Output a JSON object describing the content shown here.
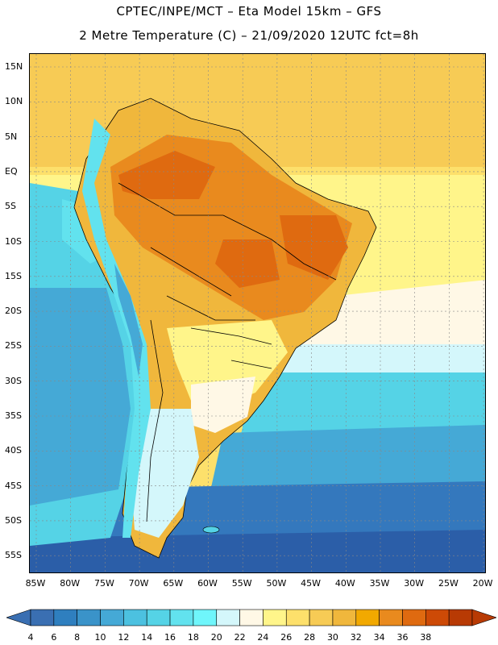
{
  "header": {
    "title_line1": "CPTEC/INPE/MCT –  Eta Model 15km – GFS",
    "title_line2": "2 Metre Temperature (C) – 21/09/2020 12UTC fct=8h"
  },
  "axes": {
    "lat_labels": [
      "15N",
      "10N",
      "5N",
      "EQ",
      "5S",
      "10S",
      "15S",
      "20S",
      "25S",
      "30S",
      "35S",
      "40S",
      "45S",
      "50S",
      "55S"
    ],
    "lon_labels": [
      "85W",
      "80W",
      "75W",
      "70W",
      "65W",
      "60W",
      "55W",
      "50W",
      "45W",
      "40W",
      "35W",
      "30W",
      "25W",
      "20W"
    ]
  },
  "colorbar": {
    "ticks": [
      "4",
      "6",
      "8",
      "10",
      "12",
      "14",
      "16",
      "18",
      "20",
      "22",
      "24",
      "26",
      "28",
      "30",
      "32",
      "34",
      "36",
      "38"
    ],
    "colors": [
      "#3a6fb2",
      "#2f7fbf",
      "#3a93c9",
      "#45a9d6",
      "#4cc1e0",
      "#55d3e6",
      "#62e2ee",
      "#6ff6fb",
      "#d4f7fb",
      "#fff8e6",
      "#fff58a",
      "#fde06b",
      "#f7cb55",
      "#f0b73c",
      "#f2a900",
      "#e98a1e",
      "#df6a10",
      "#cd4a06",
      "#b83a04"
    ],
    "low_arrow_color": "#3a6fb2",
    "high_arrow_color": "#b83a04"
  },
  "map_colors": {
    "ocean_far_south": "#2b5ea8",
    "ocean_south": "#3478bd",
    "ocean_mid": "#45a9d6",
    "ocean_cool": "#55d3e6",
    "ocean_subtrop": "#d4f7fb",
    "ocean_warm": "#fff58a",
    "ocean_trop": "#fde06b",
    "ocean_hot": "#f7cb55",
    "land_hot": "#f0b73c",
    "land_very_hot": "#e98a1e",
    "land_extreme": "#df6a10",
    "andes_cold": "#62e2ee",
    "patagonia": "#d4f7fb",
    "borders": "#000000",
    "grid": "#888888"
  }
}
